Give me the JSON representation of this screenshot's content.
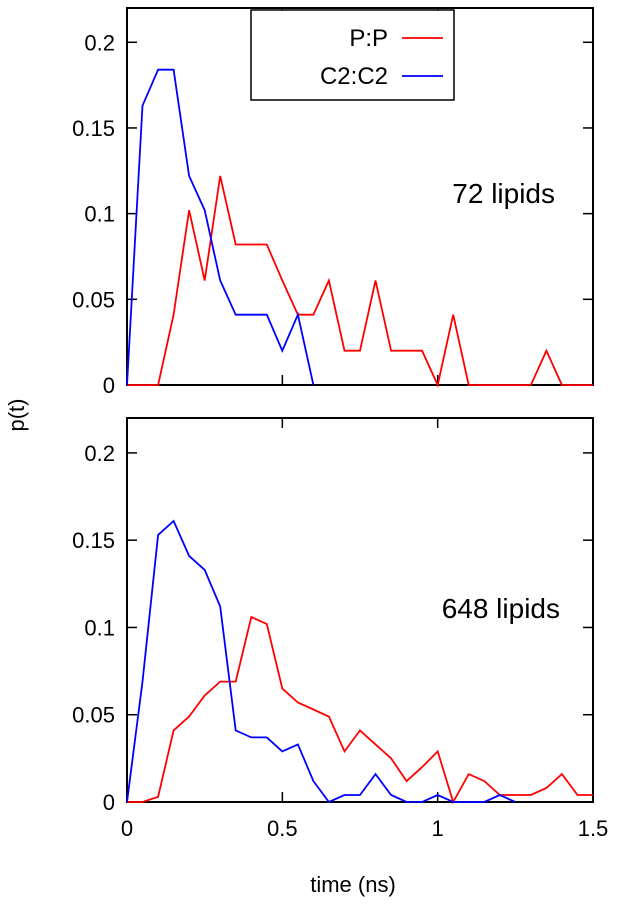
{
  "chart_data": [
    {
      "type": "line",
      "annotation": "72 lipids",
      "xlim": [
        0,
        1.5
      ],
      "ylim": [
        0,
        0.22
      ],
      "yticks": [
        0,
        0.05,
        0.1,
        0.15,
        0.2
      ],
      "ytick_labels": [
        "0",
        "0.05",
        "0.1",
        "0.15",
        "0.2"
      ],
      "xticks": [],
      "xtick_labels": [],
      "legend": {
        "placement": "top-center",
        "entries": [
          "P:P",
          "C2:C2"
        ]
      },
      "series": [
        {
          "name": "P:P",
          "color": "#ff0000",
          "x": [
            0,
            0.1,
            0.15,
            0.2,
            0.25,
            0.3,
            0.35,
            0.4,
            0.45,
            0.5,
            0.55,
            0.6,
            0.65,
            0.7,
            0.75,
            0.8,
            0.85,
            0.9,
            0.95,
            1.0,
            1.05,
            1.1,
            1.15,
            1.2,
            1.25,
            1.3,
            1.35,
            1.4,
            1.45,
            1.5
          ],
          "y": [
            0,
            0,
            0.041,
            0.102,
            0.061,
            0.122,
            0.082,
            0.082,
            0.082,
            0.061,
            0.041,
            0.041,
            0.061,
            0.02,
            0.02,
            0.061,
            0.02,
            0.02,
            0.02,
            0,
            0.041,
            0,
            0,
            0,
            0,
            0,
            0.02,
            0,
            0,
            0
          ]
        },
        {
          "name": "C2:C2",
          "color": "#0000ff",
          "x": [
            0,
            0.05,
            0.1,
            0.15,
            0.2,
            0.25,
            0.3,
            0.35,
            0.4,
            0.45,
            0.5,
            0.55,
            0.6
          ],
          "y": [
            0,
            0.163,
            0.184,
            0.184,
            0.122,
            0.102,
            0.061,
            0.041,
            0.041,
            0.041,
            0.02,
            0.041,
            0
          ]
        }
      ]
    },
    {
      "type": "line",
      "annotation": "648 lipids",
      "xlim": [
        0,
        1.5
      ],
      "ylim": [
        0,
        0.22
      ],
      "yticks": [
        0,
        0.05,
        0.1,
        0.15,
        0.2
      ],
      "ytick_labels": [
        "0",
        "0.05",
        "0.1",
        "0.15",
        "0.2"
      ],
      "xticks": [
        0,
        0.5,
        1,
        1.5
      ],
      "xtick_labels": [
        "0",
        "0.5",
        "1",
        "1.5"
      ],
      "xlabel": "time (ns)",
      "series": [
        {
          "name": "P:P",
          "color": "#ff0000",
          "x": [
            0,
            0.05,
            0.1,
            0.15,
            0.2,
            0.25,
            0.3,
            0.35,
            0.4,
            0.45,
            0.5,
            0.55,
            0.6,
            0.65,
            0.7,
            0.75,
            0.8,
            0.85,
            0.9,
            0.95,
            1.0,
            1.05,
            1.1,
            1.15,
            1.2,
            1.25,
            1.3,
            1.35,
            1.4,
            1.45,
            1.5
          ],
          "y": [
            0,
            0,
            0.003,
            0.041,
            0.049,
            0.061,
            0.069,
            0.069,
            0.106,
            0.102,
            0.065,
            0.057,
            0.053,
            0.049,
            0.029,
            0.041,
            0.033,
            0.025,
            0.012,
            0.02,
            0.029,
            0,
            0.016,
            0.012,
            0.004,
            0.004,
            0.004,
            0.008,
            0.016,
            0.004,
            0.004
          ]
        },
        {
          "name": "C2:C2",
          "color": "#0000ff",
          "x": [
            0,
            0.05,
            0.1,
            0.15,
            0.2,
            0.25,
            0.3,
            0.35,
            0.4,
            0.45,
            0.5,
            0.55,
            0.6,
            0.65,
            0.7,
            0.75,
            0.8,
            0.85,
            0.9,
            0.95,
            1.0,
            1.05,
            1.1,
            1.15,
            1.2,
            1.25
          ],
          "y": [
            0,
            0.069,
            0.153,
            0.161,
            0.141,
            0.133,
            0.112,
            0.041,
            0.037,
            0.037,
            0.029,
            0.033,
            0.012,
            0,
            0.004,
            0.004,
            0.016,
            0.004,
            0,
            0,
            0.004,
            0,
            0,
            0,
            0.004,
            0
          ]
        }
      ]
    }
  ],
  "shared": {
    "ylabel": "p(t)"
  }
}
